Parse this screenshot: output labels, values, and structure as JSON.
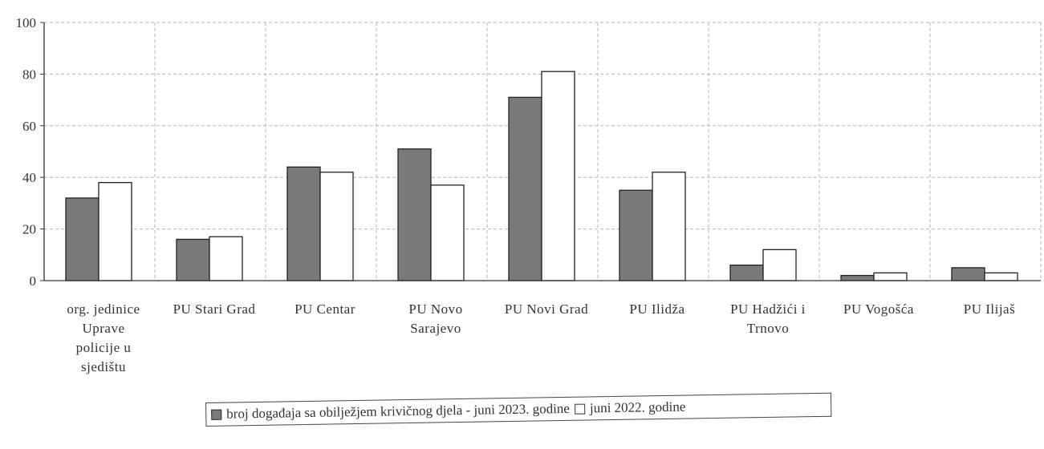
{
  "chart_data": {
    "type": "bar",
    "categories": [
      "org. jedinice Uprave policije u sjedištu",
      "PU Stari Grad",
      "PU Centar",
      "PU Novo Sarajevo",
      "PU Novi Grad",
      "PU Ilidža",
      "PU Hadžići i Trnovo",
      "PU Vogošća",
      "PU Ilijaš"
    ],
    "category_lines": [
      [
        "org. jedinice",
        "Uprave",
        "policije u",
        "sjedištu"
      ],
      [
        "PU Stari Grad"
      ],
      [
        "PU Centar"
      ],
      [
        "PU Novo",
        "Sarajevo"
      ],
      [
        "PU Novi Grad"
      ],
      [
        "PU Ilidža"
      ],
      [
        "PU Hadžići i",
        "Trnovo"
      ],
      [
        "PU Vogošća"
      ],
      [
        "PU Ilijaš"
      ]
    ],
    "series": [
      {
        "name": "broj događaja sa obilježjem krivičnog djela - juni 2023. godine",
        "color": "#7a7a7a",
        "values": [
          32,
          16,
          44,
          51,
          71,
          35,
          6,
          2,
          5
        ]
      },
      {
        "name": "juni 2022. godine",
        "color": "#ffffff",
        "values": [
          38,
          17,
          42,
          37,
          81,
          42,
          12,
          3,
          3
        ]
      }
    ],
    "ylim": [
      0,
      100
    ],
    "yticks": [
      0,
      20,
      40,
      60,
      80,
      100
    ],
    "grid": true,
    "legend_position": "bottom"
  }
}
